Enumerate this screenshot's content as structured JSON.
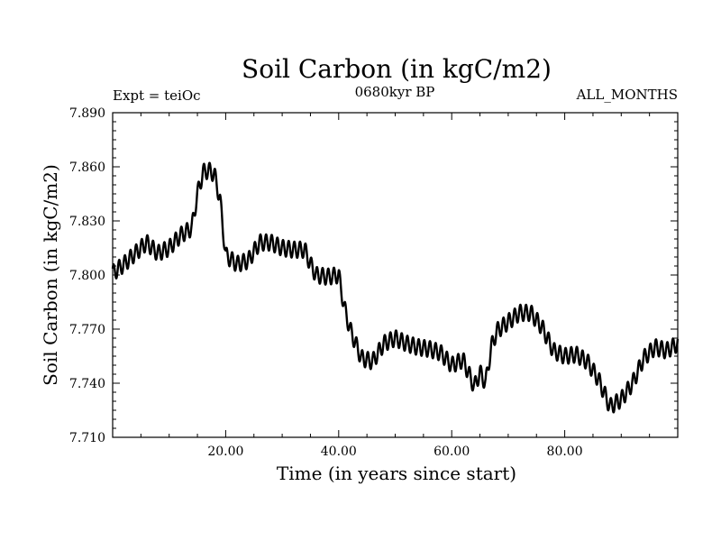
{
  "chart_data": {
    "type": "line",
    "title": "Soil Carbon (in kgC/m2)",
    "subtitle": "0680kyr BP",
    "experiment_label": "Expt = teiOc",
    "months_label": "ALL_MONTHS",
    "xlabel": "Time (in years since start)",
    "ylabel": "Soil Carbon (in kgC/m2)",
    "xlim": [
      0,
      100
    ],
    "ylim": [
      7.71,
      7.89
    ],
    "x_ticks": [
      20,
      40,
      60,
      80
    ],
    "x_tick_labels": [
      "20.00",
      "40.00",
      "60.00",
      "80.00"
    ],
    "y_ticks": [
      7.71,
      7.74,
      7.77,
      7.8,
      7.83,
      7.86,
      7.89
    ],
    "y_tick_labels": [
      "7.710",
      "7.740",
      "7.770",
      "7.800",
      "7.830",
      "7.860",
      "7.890"
    ],
    "grid": false,
    "seasonal_amplitude": 0.0045,
    "annual_mean_x": [
      0,
      2,
      4,
      6,
      8,
      10,
      12,
      14,
      15,
      16,
      17,
      18,
      19,
      20,
      22,
      24,
      26,
      28,
      30,
      32,
      34,
      35,
      36,
      38,
      40,
      41,
      42,
      44,
      46,
      48,
      50,
      52,
      54,
      56,
      58,
      60,
      62,
      64,
      65,
      66,
      67,
      68,
      70,
      72,
      74,
      76,
      78,
      80,
      82,
      84,
      86,
      88,
      90,
      92,
      94,
      96,
      98,
      100
    ],
    "annual_mean_y": [
      7.801,
      7.806,
      7.812,
      7.818,
      7.812,
      7.815,
      7.822,
      7.826,
      7.845,
      7.857,
      7.858,
      7.856,
      7.842,
      7.811,
      7.806,
      7.808,
      7.818,
      7.818,
      7.815,
      7.814,
      7.814,
      7.806,
      7.8,
      7.799,
      7.8,
      7.782,
      7.77,
      7.754,
      7.752,
      7.762,
      7.765,
      7.762,
      7.76,
      7.759,
      7.757,
      7.75,
      7.753,
      7.738,
      7.746,
      7.74,
      7.76,
      7.769,
      7.774,
      7.779,
      7.779,
      7.771,
      7.758,
      7.755,
      7.756,
      7.752,
      7.742,
      7.727,
      7.731,
      7.74,
      7.754,
      7.76,
      7.758,
      7.762
    ]
  }
}
